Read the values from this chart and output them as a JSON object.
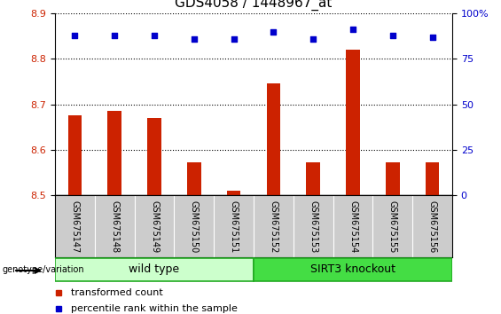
{
  "title": "GDS4058 / 1448967_at",
  "samples": [
    "GSM675147",
    "GSM675148",
    "GSM675149",
    "GSM675150",
    "GSM675151",
    "GSM675152",
    "GSM675153",
    "GSM675154",
    "GSM675155",
    "GSM675156"
  ],
  "transformed_count": [
    8.675,
    8.685,
    8.67,
    8.572,
    8.51,
    8.745,
    8.572,
    8.82,
    8.572,
    8.572
  ],
  "percentile_rank": [
    88,
    88,
    88,
    86,
    86,
    90,
    86,
    91,
    88,
    87
  ],
  "ylim_left": [
    8.5,
    8.9
  ],
  "ylim_right": [
    0,
    100
  ],
  "yticks_left": [
    8.5,
    8.6,
    8.7,
    8.8,
    8.9
  ],
  "yticks_right": [
    0,
    25,
    50,
    75,
    100
  ],
  "bar_color": "#cc2200",
  "dot_color": "#0000cc",
  "bg_color": "#ffffff",
  "sample_box_color": "#cccccc",
  "wt_color": "#ccffcc",
  "ko_color": "#44dd44",
  "group_border_color": "#22aa22",
  "group_labels": [
    "wild type",
    "SIRT3 knockout"
  ],
  "genotype_label": "genotype/variation",
  "legend_items": [
    {
      "color": "#cc2200",
      "label": "transformed count"
    },
    {
      "color": "#0000cc",
      "label": "percentile rank within the sample"
    }
  ],
  "bar_width": 0.5,
  "grid_color": "#000000",
  "title_fontsize": 11,
  "tick_fontsize": 8,
  "sample_fontsize": 7,
  "group_fontsize": 9,
  "legend_fontsize": 8
}
